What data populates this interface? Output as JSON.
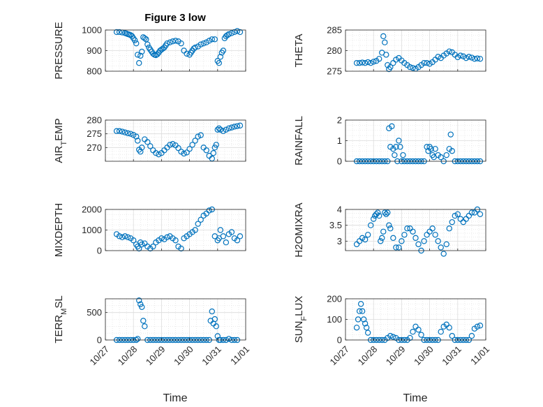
{
  "figure": {
    "title": "Figure 3 low",
    "xlabel": "Time",
    "marker_color": "#0072BD",
    "grid_color": "#dcdcdc"
  },
  "chart_data": [
    {
      "type": "scatter",
      "name": "pressure",
      "ylabel_main": "PRESSURE",
      "ylabel_sub": "",
      "ylabel_tail": "",
      "ylim": [
        800,
        1000
      ],
      "yticks": [
        800,
        900,
        1000
      ],
      "ytick_labels": [
        "800",
        "900",
        "1000"
      ],
      "xlim": [
        0,
        5
      ],
      "xticks": [
        0,
        1,
        2,
        3,
        4,
        5
      ],
      "xtick_labels": [
        "10/27",
        "10/28",
        "10/29",
        "10/30",
        "10/31",
        "11/01"
      ],
      "grid": true,
      "x": [
        0.4,
        0.5,
        0.6,
        0.7,
        0.75,
        0.8,
        0.85,
        0.9,
        0.95,
        1.0,
        1.05,
        1.1,
        1.15,
        1.2,
        1.25,
        1.3,
        1.35,
        1.4,
        1.45,
        1.5,
        1.55,
        1.6,
        1.65,
        1.7,
        1.75,
        1.8,
        1.85,
        1.9,
        1.95,
        2.0,
        2.05,
        2.1,
        2.15,
        2.2,
        2.3,
        2.4,
        2.5,
        2.6,
        2.7,
        2.8,
        2.9,
        3.0,
        3.05,
        3.1,
        3.15,
        3.2,
        3.3,
        3.4,
        3.5,
        3.6,
        3.7,
        3.8,
        3.9,
        4.0,
        4.05,
        4.1,
        4.15,
        4.2,
        4.25,
        4.3,
        4.35,
        4.4,
        4.5,
        4.6,
        4.7,
        4.8
      ],
      "y": [
        990,
        990,
        988,
        985,
        983,
        980,
        978,
        975,
        970,
        960,
        950,
        935,
        880,
        840,
        875,
        895,
        965,
        960,
        955,
        930,
        915,
        905,
        895,
        885,
        880,
        878,
        882,
        890,
        900,
        905,
        910,
        915,
        925,
        935,
        940,
        945,
        948,
        945,
        935,
        900,
        885,
        880,
        890,
        900,
        910,
        915,
        920,
        930,
        935,
        940,
        948,
        955,
        955,
        850,
        840,
        870,
        890,
        900,
        960,
        970,
        975,
        980,
        985,
        990,
        995,
        990
      ]
    },
    {
      "type": "scatter",
      "name": "theta",
      "ylabel_main": "THETA",
      "ylabel_sub": "",
      "ylabel_tail": "",
      "ylim": [
        275,
        285
      ],
      "yticks": [
        275,
        280,
        285
      ],
      "ytick_labels": [
        "275",
        "280",
        "285"
      ],
      "xlim": [
        0,
        5
      ],
      "xticks": [
        0,
        1,
        2,
        3,
        4,
        5
      ],
      "xtick_labels": [
        "10/27",
        "10/28",
        "10/29",
        "10/30",
        "10/31",
        "11/01"
      ],
      "grid": true,
      "x": [
        0.4,
        0.5,
        0.6,
        0.7,
        0.8,
        0.9,
        1.0,
        1.1,
        1.2,
        1.3,
        1.35,
        1.4,
        1.45,
        1.5,
        1.55,
        1.6,
        1.7,
        1.8,
        1.9,
        2.0,
        2.1,
        2.2,
        2.3,
        2.4,
        2.5,
        2.6,
        2.7,
        2.8,
        2.9,
        3.0,
        3.1,
        3.2,
        3.3,
        3.4,
        3.5,
        3.6,
        3.7,
        3.8,
        3.9,
        4.0,
        4.1,
        4.2,
        4.3,
        4.4,
        4.5,
        4.6,
        4.7,
        4.8
      ],
      "y": [
        277,
        277,
        277.1,
        277,
        277.2,
        277,
        277.3,
        277.5,
        278,
        279.5,
        283.5,
        282,
        279,
        276.5,
        275.5,
        276,
        277,
        277.8,
        278.2,
        277.6,
        277,
        276.5,
        276,
        275.8,
        275.6,
        276,
        276.5,
        277,
        277,
        276.8,
        277.2,
        277.8,
        278.5,
        278.2,
        278.8,
        279.3,
        279.8,
        279.6,
        279,
        278.4,
        278.8,
        278.6,
        278.2,
        278.5,
        278.3,
        278,
        278.1,
        278
      ]
    },
    {
      "type": "scatter",
      "name": "air_temp",
      "ylabel_main": "AIR",
      "ylabel_sub": "T",
      "ylabel_tail": "EMP",
      "ylim": [
        265,
        280
      ],
      "yticks": [
        270,
        275,
        280
      ],
      "ytick_labels": [
        "270",
        "275",
        "280"
      ],
      "xlim": [
        0,
        5
      ],
      "xticks": [
        0,
        1,
        2,
        3,
        4,
        5
      ],
      "xtick_labels": [
        "10/27",
        "10/28",
        "10/29",
        "10/30",
        "10/31",
        "11/01"
      ],
      "grid": true,
      "x": [
        0.4,
        0.5,
        0.6,
        0.7,
        0.8,
        0.9,
        1.0,
        1.1,
        1.15,
        1.2,
        1.25,
        1.3,
        1.4,
        1.5,
        1.6,
        1.7,
        1.8,
        1.9,
        2.0,
        2.1,
        2.2,
        2.3,
        2.4,
        2.5,
        2.6,
        2.7,
        2.8,
        2.9,
        3.0,
        3.1,
        3.2,
        3.3,
        3.4,
        3.5,
        3.6,
        3.7,
        3.8,
        3.85,
        3.9,
        3.95,
        4.0,
        4.05,
        4.1,
        4.2,
        4.3,
        4.4,
        4.5,
        4.6,
        4.7,
        4.8
      ],
      "y": [
        276,
        276,
        275.8,
        275.5,
        275.2,
        275,
        274.6,
        274,
        272.5,
        269.2,
        268.5,
        270,
        273,
        272,
        270.5,
        269,
        268,
        267.5,
        268,
        269,
        270,
        271,
        271.3,
        270.8,
        269.8,
        268.5,
        267.8,
        268.2,
        269.5,
        271,
        272.5,
        274,
        274.5,
        270,
        269,
        267,
        266,
        268,
        270,
        271,
        276.5,
        277,
        276.5,
        276,
        276.5,
        277,
        277.3,
        277.6,
        277.8,
        278
      ]
    },
    {
      "type": "scatter",
      "name": "rainfall",
      "ylabel_main": "RAINFALL",
      "ylabel_sub": "",
      "ylabel_tail": "",
      "ylim": [
        0,
        2
      ],
      "yticks": [
        0,
        1,
        2
      ],
      "ytick_labels": [
        "0",
        "1",
        "2"
      ],
      "xlim": [
        0,
        5
      ],
      "xticks": [
        0,
        1,
        2,
        3,
        4,
        5
      ],
      "xtick_labels": [
        "10/27",
        "10/28",
        "10/29",
        "10/30",
        "10/31",
        "11/01"
      ],
      "grid": true,
      "x": [
        0.4,
        0.5,
        0.6,
        0.7,
        0.8,
        0.9,
        1.0,
        1.1,
        1.2,
        1.3,
        1.4,
        1.5,
        1.55,
        1.6,
        1.65,
        1.7,
        1.75,
        1.8,
        1.85,
        1.9,
        1.95,
        2.0,
        2.05,
        2.1,
        2.2,
        2.3,
        2.4,
        2.5,
        2.6,
        2.7,
        2.8,
        2.9,
        2.95,
        3.0,
        3.05,
        3.1,
        3.15,
        3.2,
        3.3,
        3.4,
        3.5,
        3.6,
        3.7,
        3.75,
        3.8,
        3.9,
        4.0,
        4.1,
        4.2,
        4.3,
        4.4,
        4.5,
        4.6,
        4.7,
        4.8
      ],
      "y": [
        0,
        0,
        0,
        0,
        0,
        0,
        0,
        0,
        0,
        0,
        0,
        0,
        1.6,
        0.7,
        1.7,
        0.6,
        0.3,
        0.7,
        0,
        1.0,
        0.7,
        0,
        0.3,
        0,
        0,
        0,
        0,
        0,
        0,
        0,
        0,
        0.7,
        0.5,
        0.7,
        0.6,
        0.3,
        0.2,
        0.6,
        0.3,
        0.2,
        0,
        0.3,
        0.6,
        1.3,
        0.5,
        0,
        0,
        0,
        0,
        0,
        0,
        0,
        0,
        0,
        0
      ]
    },
    {
      "type": "scatter",
      "name": "mixdepth",
      "ylabel_main": "MIXDEPTH",
      "ylabel_sub": "",
      "ylabel_tail": "",
      "ylim": [
        0,
        2000
      ],
      "yticks": [
        0,
        1000,
        2000
      ],
      "ytick_labels": [
        "0",
        "1000",
        "2000"
      ],
      "xlim": [
        0,
        5
      ],
      "xticks": [
        0,
        1,
        2,
        3,
        4,
        5
      ],
      "xtick_labels": [
        "10/27",
        "10/28",
        "10/29",
        "10/30",
        "10/31",
        "11/01"
      ],
      "grid": true,
      "x": [
        0.4,
        0.5,
        0.6,
        0.7,
        0.8,
        0.9,
        1.0,
        1.1,
        1.15,
        1.2,
        1.25,
        1.3,
        1.4,
        1.5,
        1.6,
        1.7,
        1.8,
        1.9,
        2.0,
        2.1,
        2.2,
        2.3,
        2.4,
        2.5,
        2.6,
        2.7,
        2.8,
        2.9,
        3.0,
        3.1,
        3.2,
        3.3,
        3.4,
        3.5,
        3.6,
        3.7,
        3.8,
        3.9,
        4.0,
        4.05,
        4.1,
        4.2,
        4.3,
        4.4,
        4.5,
        4.6,
        4.7,
        4.8
      ],
      "y": [
        800,
        700,
        650,
        700,
        650,
        600,
        500,
        300,
        200,
        100,
        400,
        300,
        350,
        200,
        100,
        200,
        400,
        500,
        600,
        550,
        650,
        700,
        600,
        500,
        200,
        100,
        600,
        700,
        800,
        900,
        1000,
        1300,
        1500,
        1700,
        1800,
        1950,
        2000,
        700,
        500,
        600,
        1000,
        700,
        400,
        800,
        900,
        600,
        500,
        700
      ]
    },
    {
      "type": "scatter",
      "name": "h2omixra",
      "ylabel_main": "H2OMIXRA",
      "ylabel_sub": "",
      "ylabel_tail": "",
      "ylim": [
        2.7,
        4.0
      ],
      "yticks": [
        3,
        3.5,
        4
      ],
      "ytick_labels": [
        "3",
        "3.5",
        "4"
      ],
      "xlim": [
        0,
        5
      ],
      "xticks": [
        0,
        1,
        2,
        3,
        4,
        5
      ],
      "xtick_labels": [
        "10/27",
        "10/28",
        "10/29",
        "10/30",
        "10/31",
        "11/01"
      ],
      "grid": true,
      "x": [
        0.4,
        0.5,
        0.6,
        0.7,
        0.8,
        0.9,
        1.0,
        1.05,
        1.1,
        1.15,
        1.2,
        1.25,
        1.3,
        1.35,
        1.4,
        1.45,
        1.5,
        1.55,
        1.6,
        1.7,
        1.8,
        1.9,
        2.0,
        2.1,
        2.2,
        2.3,
        2.4,
        2.5,
        2.6,
        2.7,
        2.8,
        2.9,
        3.0,
        3.1,
        3.2,
        3.3,
        3.4,
        3.5,
        3.6,
        3.7,
        3.8,
        3.9,
        4.0,
        4.1,
        4.2,
        4.3,
        4.4,
        4.5,
        4.6,
        4.7,
        4.8
      ],
      "y": [
        2.9,
        3.0,
        3.1,
        3.05,
        3.2,
        3.5,
        3.7,
        3.8,
        3.85,
        3.9,
        3.8,
        3.0,
        3.1,
        3.3,
        3.9,
        3.85,
        3.9,
        3.5,
        3.4,
        3.1,
        2.8,
        2.8,
        3.0,
        3.2,
        3.4,
        3.4,
        3.3,
        3.1,
        2.9,
        2.7,
        3.0,
        3.2,
        3.3,
        3.4,
        3.2,
        3.0,
        2.8,
        2.6,
        2.9,
        3.4,
        3.6,
        3.8,
        3.85,
        3.7,
        3.6,
        3.7,
        3.8,
        3.9,
        3.9,
        4.0,
        3.85
      ]
    },
    {
      "type": "scatter",
      "name": "terr_msl",
      "ylabel_main": "TERR",
      "ylabel_sub": "M",
      "ylabel_tail": "SL",
      "ylim": [
        0,
        750
      ],
      "yticks": [
        0,
        500
      ],
      "ytick_labels": [
        "0",
        "500"
      ],
      "xlim": [
        0,
        5
      ],
      "xticks": [
        0,
        1,
        2,
        3,
        4,
        5
      ],
      "xtick_labels": [
        "10/27",
        "10/28",
        "10/29",
        "10/30",
        "10/31",
        "11/01"
      ],
      "grid": true,
      "x": [
        0.4,
        0.5,
        0.6,
        0.7,
        0.8,
        0.9,
        1.0,
        1.1,
        1.15,
        1.2,
        1.25,
        1.3,
        1.35,
        1.4,
        1.5,
        1.6,
        1.7,
        1.8,
        1.9,
        2.0,
        2.1,
        2.2,
        2.3,
        2.4,
        2.5,
        2.6,
        2.7,
        2.8,
        2.9,
        3.0,
        3.1,
        3.2,
        3.3,
        3.4,
        3.5,
        3.6,
        3.7,
        3.75,
        3.8,
        3.85,
        3.9,
        3.95,
        4.0,
        4.05,
        4.1,
        4.2,
        4.3,
        4.4,
        4.5,
        4.6,
        4.7
      ],
      "y": [
        0,
        0,
        0,
        0,
        0,
        0,
        0,
        0,
        20,
        720,
        650,
        600,
        350,
        250,
        0,
        0,
        0,
        0,
        0,
        0,
        0,
        0,
        0,
        0,
        0,
        0,
        0,
        0,
        0,
        0,
        0,
        0,
        0,
        0,
        0,
        0,
        0,
        350,
        520,
        300,
        380,
        250,
        70,
        0,
        0,
        0,
        0,
        20,
        0,
        0,
        0
      ]
    },
    {
      "type": "scatter",
      "name": "sun_flux",
      "ylabel_main": "SUN",
      "ylabel_sub": "F",
      "ylabel_tail": "LUX",
      "ylim": [
        0,
        200
      ],
      "yticks": [
        0,
        100,
        200
      ],
      "ytick_labels": [
        "0",
        "100",
        "200"
      ],
      "xlim": [
        0,
        5
      ],
      "xticks": [
        0,
        1,
        2,
        3,
        4,
        5
      ],
      "xtick_labels": [
        "10/27",
        "10/28",
        "10/29",
        "10/30",
        "10/31",
        "11/01"
      ],
      "grid": true,
      "x": [
        0.4,
        0.45,
        0.5,
        0.55,
        0.6,
        0.65,
        0.7,
        0.75,
        0.8,
        0.9,
        1.0,
        1.1,
        1.2,
        1.3,
        1.4,
        1.5,
        1.6,
        1.7,
        1.8,
        1.9,
        2.0,
        2.1,
        2.2,
        2.3,
        2.4,
        2.5,
        2.6,
        2.7,
        2.8,
        2.9,
        3.0,
        3.1,
        3.2,
        3.3,
        3.4,
        3.5,
        3.6,
        3.7,
        3.8,
        3.9,
        4.0,
        4.1,
        4.2,
        4.3,
        4.4,
        4.5,
        4.6,
        4.7,
        4.8
      ],
      "y": [
        60,
        100,
        140,
        175,
        140,
        100,
        80,
        60,
        35,
        0,
        0,
        0,
        0,
        0,
        0,
        10,
        20,
        15,
        10,
        0,
        0,
        0,
        0,
        10,
        40,
        65,
        50,
        25,
        0,
        0,
        0,
        0,
        0,
        0,
        40,
        65,
        75,
        60,
        20,
        0,
        0,
        0,
        0,
        0,
        0,
        20,
        55,
        65,
        70
      ]
    }
  ]
}
